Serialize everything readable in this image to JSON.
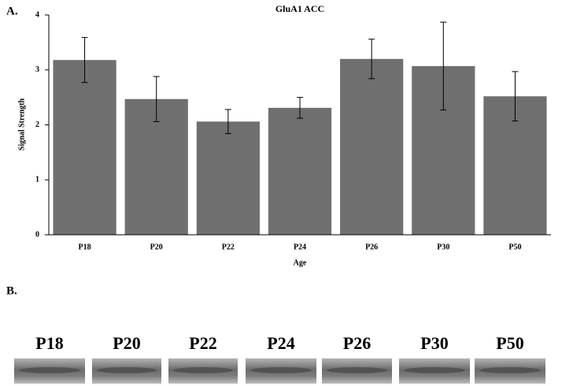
{
  "chart_data": {
    "type": "bar",
    "panel_label": "A.",
    "title": "GluA1 ACC",
    "x_label": "Age",
    "y_label": "Signal Strength",
    "categories": [
      "P18",
      "P20",
      "P22",
      "P24",
      "P26",
      "P30",
      "P50"
    ],
    "values": [
      3.18,
      2.47,
      2.06,
      2.31,
      3.2,
      3.07,
      2.52
    ],
    "errors": [
      0.41,
      0.41,
      0.22,
      0.19,
      0.36,
      0.8,
      0.45
    ],
    "color": "#6f6f6f",
    "ylim": [
      0,
      4
    ],
    "yticks": [
      0,
      1,
      2,
      3,
      4
    ],
    "grid": false
  },
  "blot": {
    "panel_label": "B.",
    "lanes": [
      "P18",
      "P20",
      "P22",
      "P24",
      "P26",
      "P30",
      "P50"
    ]
  }
}
